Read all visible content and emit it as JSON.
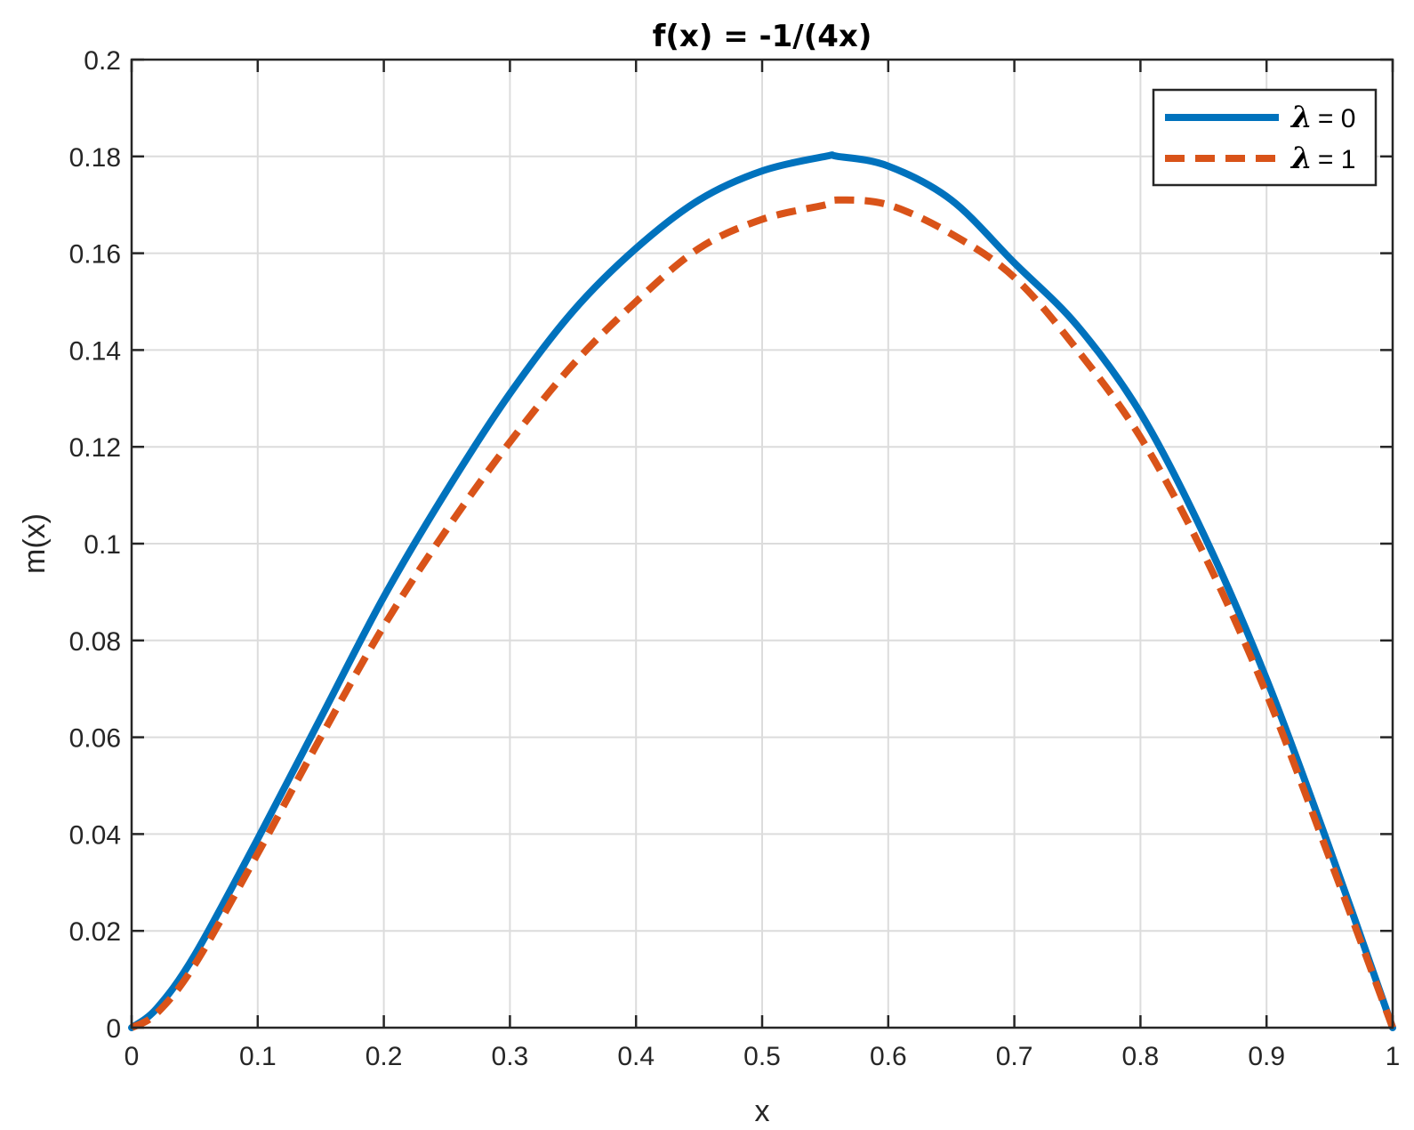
{
  "chart_data": {
    "type": "line",
    "title": "f(x) = -1/(4x)",
    "xlabel": "x",
    "ylabel": "m(x)",
    "xlim": [
      0,
      1
    ],
    "ylim": [
      0,
      0.2
    ],
    "xticks": [
      0,
      0.1,
      0.2,
      0.3,
      0.4,
      0.5,
      0.6,
      0.7,
      0.8,
      0.9,
      1
    ],
    "xtick_labels": [
      "0",
      "0.1",
      "0.2",
      "0.3",
      "0.4",
      "0.5",
      "0.6",
      "0.7",
      "0.8",
      "0.9",
      "1"
    ],
    "yticks": [
      0,
      0.02,
      0.04,
      0.06,
      0.08,
      0.1,
      0.12,
      0.14,
      0.16,
      0.18,
      0.2
    ],
    "ytick_labels": [
      "0",
      "0.02",
      "0.04",
      "0.06",
      "0.08",
      "0.1",
      "0.12",
      "0.14",
      "0.16",
      "0.18",
      "0.2"
    ],
    "grid": true,
    "legend_position": "top-right",
    "series": [
      {
        "name": "λ = 0",
        "legend_symbol": "λ",
        "legend_value": "= 0",
        "color": "#0072BD",
        "style": "solid",
        "x": [
          0,
          0.02,
          0.05,
          0.1,
          0.15,
          0.2,
          0.25,
          0.3,
          0.35,
          0.4,
          0.45,
          0.5,
          0.55,
          0.56,
          0.6,
          0.65,
          0.7,
          0.75,
          0.8,
          0.85,
          0.9,
          0.95,
          1
        ],
        "y": [
          0,
          0.004,
          0.015,
          0.039,
          0.064,
          0.089,
          0.111,
          0.131,
          0.148,
          0.161,
          0.171,
          0.177,
          0.18,
          0.18,
          0.178,
          0.171,
          0.158,
          0.145,
          0.127,
          0.102,
          0.072,
          0.037,
          0
        ]
      },
      {
        "name": "λ = 1",
        "legend_symbol": "λ",
        "legend_value": "= 1",
        "color": "#D95319",
        "style": "dashed",
        "x": [
          0,
          0.02,
          0.05,
          0.1,
          0.15,
          0.2,
          0.25,
          0.3,
          0.35,
          0.4,
          0.45,
          0.5,
          0.55,
          0.56,
          0.6,
          0.65,
          0.7,
          0.75,
          0.8,
          0.85,
          0.9,
          0.95,
          1
        ],
        "y": [
          0,
          0.003,
          0.013,
          0.036,
          0.06,
          0.083,
          0.103,
          0.121,
          0.137,
          0.15,
          0.161,
          0.167,
          0.17,
          0.171,
          0.17,
          0.164,
          0.155,
          0.14,
          0.122,
          0.098,
          0.069,
          0.035,
          0
        ]
      }
    ]
  }
}
